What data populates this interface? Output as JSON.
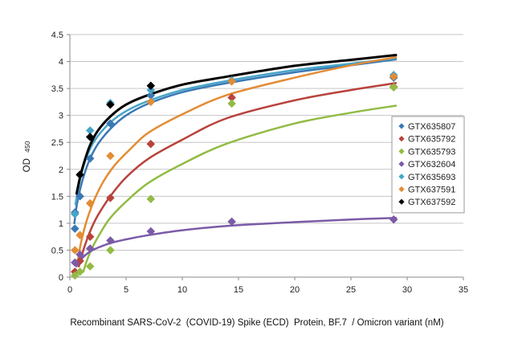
{
  "chart_data": {
    "type": "scatter",
    "title": "",
    "xlabel": "Recombinant SARS-CoV-2  (COVID-19) Spike (ECD)  Protein, BF.7  / Omicron variant (nM)",
    "ylabel_main": "OD",
    "ylabel_sub": "450",
    "xlim": [
      0,
      35
    ],
    "ylim": [
      0,
      4.5
    ],
    "xticks": [
      0,
      5,
      10,
      15,
      20,
      25,
      30,
      35
    ],
    "yticks": [
      0,
      0.5,
      1,
      1.5,
      2,
      2.5,
      3,
      3.5,
      4,
      4.5
    ],
    "ytick_labels": [
      "0",
      "0.5",
      "1",
      "1.5",
      "2",
      "2.5",
      "3",
      "3.5",
      "4",
      "4.5"
    ],
    "grid": "horizontal",
    "legend_position": "right",
    "marker": "diamond",
    "series": [
      {
        "name": "GTX635807",
        "color": "#3a78b4",
        "points": [
          [
            0.45,
            0.9
          ],
          [
            0.45,
            1.2
          ],
          [
            0.9,
            1.5
          ],
          [
            1.8,
            2.2
          ],
          [
            3.6,
            2.85
          ],
          [
            7.2,
            3.37
          ],
          [
            14.4,
            3.63
          ],
          [
            28.8,
            3.7
          ]
        ],
        "curve": [
          [
            0.4,
            1.0
          ],
          [
            0.6,
            1.32
          ],
          [
            0.9,
            1.62
          ],
          [
            1.3,
            1.92
          ],
          [
            1.8,
            2.2
          ],
          [
            2.5,
            2.47
          ],
          [
            3.6,
            2.75
          ],
          [
            5,
            3.0
          ],
          [
            7,
            3.22
          ],
          [
            10,
            3.43
          ],
          [
            14,
            3.6
          ],
          [
            20,
            3.8
          ],
          [
            25,
            3.93
          ],
          [
            29,
            4.04
          ]
        ]
      },
      {
        "name": "GTX635792",
        "color": "#b8433c",
        "points": [
          [
            0.45,
            0.1
          ],
          [
            0.9,
            0.3
          ],
          [
            1.8,
            0.75
          ],
          [
            3.6,
            1.47
          ],
          [
            7.2,
            2.47
          ],
          [
            14.4,
            3.33
          ],
          [
            28.8,
            3.53
          ]
        ],
        "curve": [
          [
            0.8,
            0.2
          ],
          [
            1.2,
            0.5
          ],
          [
            1.8,
            0.85
          ],
          [
            2.5,
            1.15
          ],
          [
            3.6,
            1.5
          ],
          [
            5,
            1.85
          ],
          [
            7,
            2.2
          ],
          [
            10,
            2.55
          ],
          [
            14,
            2.95
          ],
          [
            20,
            3.28
          ],
          [
            25,
            3.47
          ],
          [
            29,
            3.6
          ]
        ]
      },
      {
        "name": "GTX635793",
        "color": "#92bb44",
        "points": [
          [
            0.45,
            0.03
          ],
          [
            0.9,
            0.1
          ],
          [
            1.8,
            0.2
          ],
          [
            3.6,
            0.5
          ],
          [
            7.2,
            1.45
          ],
          [
            14.4,
            3.22
          ],
          [
            28.8,
            3.52
          ]
        ],
        "curve": [
          [
            1.2,
            0.1
          ],
          [
            1.5,
            0.3
          ],
          [
            2,
            0.55
          ],
          [
            2.8,
            0.85
          ],
          [
            3.6,
            1.1
          ],
          [
            5,
            1.4
          ],
          [
            7,
            1.75
          ],
          [
            10,
            2.1
          ],
          [
            14,
            2.48
          ],
          [
            20,
            2.85
          ],
          [
            25,
            3.05
          ],
          [
            29,
            3.18
          ]
        ]
      },
      {
        "name": "GTX632604",
        "color": "#7b5ba7",
        "points": [
          [
            0.45,
            0.27
          ],
          [
            0.9,
            0.42
          ],
          [
            1.8,
            0.53
          ],
          [
            3.6,
            0.68
          ],
          [
            7.2,
            0.85
          ],
          [
            14.4,
            1.03
          ],
          [
            28.8,
            1.07
          ]
        ],
        "curve": [
          [
            0.6,
            0.2
          ],
          [
            1,
            0.33
          ],
          [
            1.5,
            0.43
          ],
          [
            2.2,
            0.52
          ],
          [
            3.6,
            0.63
          ],
          [
            5,
            0.7
          ],
          [
            7,
            0.78
          ],
          [
            10,
            0.87
          ],
          [
            14,
            0.95
          ],
          [
            20,
            1.02
          ],
          [
            25,
            1.07
          ],
          [
            29,
            1.1
          ]
        ]
      },
      {
        "name": "GTX635693",
        "color": "#47a5c8",
        "points": [
          [
            0.45,
            1.17
          ],
          [
            0.9,
            1.9
          ],
          [
            1.8,
            2.72
          ],
          [
            3.6,
            3.23
          ],
          [
            7.2,
            3.47
          ],
          [
            14.4,
            3.65
          ],
          [
            28.8,
            3.75
          ]
        ],
        "curve": [
          [
            0.5,
            1.35
          ],
          [
            0.8,
            1.7
          ],
          [
            1.2,
            2.05
          ],
          [
            1.8,
            2.38
          ],
          [
            2.5,
            2.62
          ],
          [
            3.6,
            2.87
          ],
          [
            5,
            3.08
          ],
          [
            7,
            3.27
          ],
          [
            10,
            3.47
          ],
          [
            14,
            3.64
          ],
          [
            20,
            3.84
          ],
          [
            25,
            3.96
          ],
          [
            29,
            4.06
          ]
        ]
      },
      {
        "name": "GTX637591",
        "color": "#e38c34",
        "points": [
          [
            0.45,
            0.5
          ],
          [
            0.9,
            0.78
          ],
          [
            1.8,
            1.37
          ],
          [
            3.6,
            2.25
          ],
          [
            7.2,
            3.25
          ],
          [
            14.4,
            3.63
          ],
          [
            28.8,
            3.72
          ]
        ],
        "curve": [
          [
            0.7,
            0.3
          ],
          [
            1,
            0.65
          ],
          [
            1.5,
            1.05
          ],
          [
            2.2,
            1.45
          ],
          [
            3,
            1.78
          ],
          [
            4,
            2.08
          ],
          [
            5.5,
            2.4
          ],
          [
            7,
            2.68
          ],
          [
            10,
            3.02
          ],
          [
            14,
            3.38
          ],
          [
            20,
            3.7
          ],
          [
            25,
            3.93
          ],
          [
            29,
            4.08
          ]
        ]
      },
      {
        "name": "GTX637592",
        "color": "#000000",
        "points": [
          [
            0.9,
            1.9
          ],
          [
            1.8,
            2.6
          ],
          [
            3.6,
            3.2
          ],
          [
            7.2,
            3.55
          ]
        ],
        "curve": [
          [
            0.6,
            1.55
          ],
          [
            0.9,
            1.85
          ],
          [
            1.3,
            2.15
          ],
          [
            1.8,
            2.45
          ],
          [
            2.5,
            2.72
          ],
          [
            3.6,
            2.98
          ],
          [
            5,
            3.2
          ],
          [
            7,
            3.38
          ],
          [
            10,
            3.57
          ],
          [
            14,
            3.72
          ],
          [
            20,
            3.92
          ],
          [
            25,
            4.03
          ],
          [
            29,
            4.12
          ]
        ]
      }
    ]
  }
}
